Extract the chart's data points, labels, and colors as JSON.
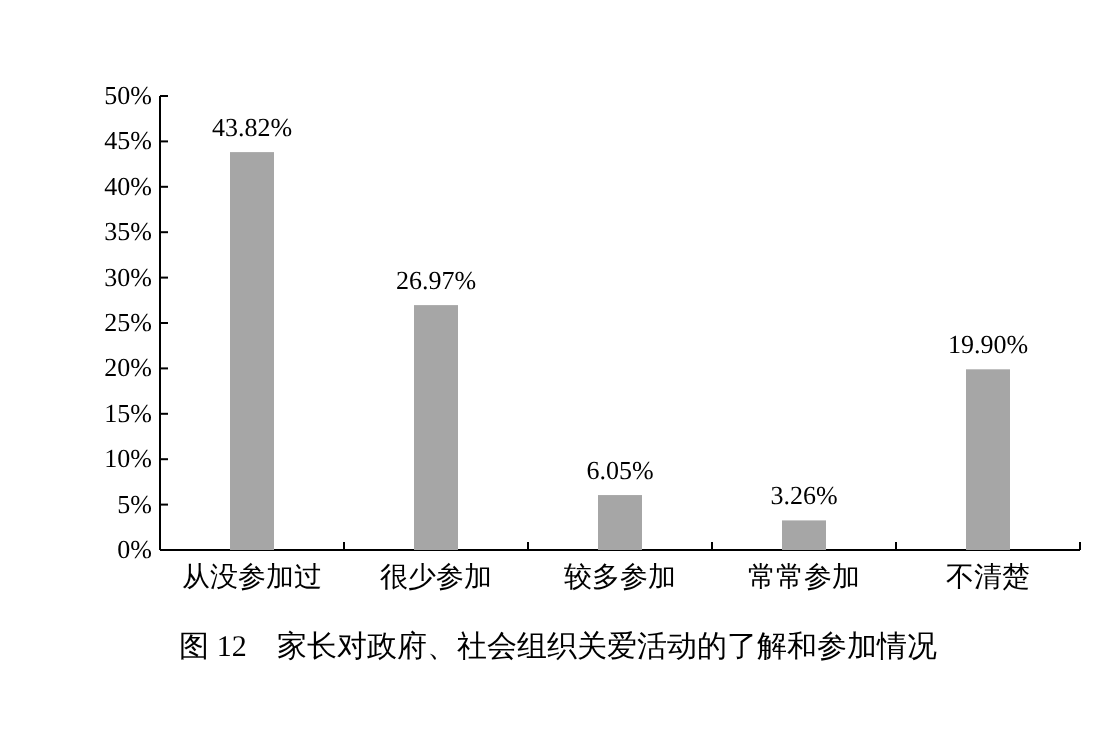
{
  "chart_data": {
    "type": "bar",
    "title": "图 12　家长对政府、社会组织关爱活动的了解和参加情况",
    "categories": [
      "从没参加过",
      "很少参加",
      "较多参加",
      "常常参加",
      "不清楚"
    ],
    "values": [
      43.82,
      26.97,
      6.05,
      3.26,
      19.9
    ],
    "value_labels": [
      "43.82%",
      "26.97%",
      "6.05%",
      "3.26%",
      "19.90%"
    ],
    "color": "#a6a6a6",
    "ylim": [
      0,
      50
    ],
    "yticks": [
      {
        "value": 0,
        "label": "0%"
      },
      {
        "value": 5,
        "label": "5%"
      },
      {
        "value": 10,
        "label": "10%"
      },
      {
        "value": 15,
        "label": "15%"
      },
      {
        "value": 20,
        "label": "20%"
      },
      {
        "value": 25,
        "label": "25%"
      },
      {
        "value": 30,
        "label": "30%"
      },
      {
        "value": 35,
        "label": "35%"
      },
      {
        "value": 40,
        "label": "40%"
      },
      {
        "value": 45,
        "label": "45%"
      },
      {
        "value": 50,
        "label": "50%"
      }
    ],
    "grid": false
  }
}
